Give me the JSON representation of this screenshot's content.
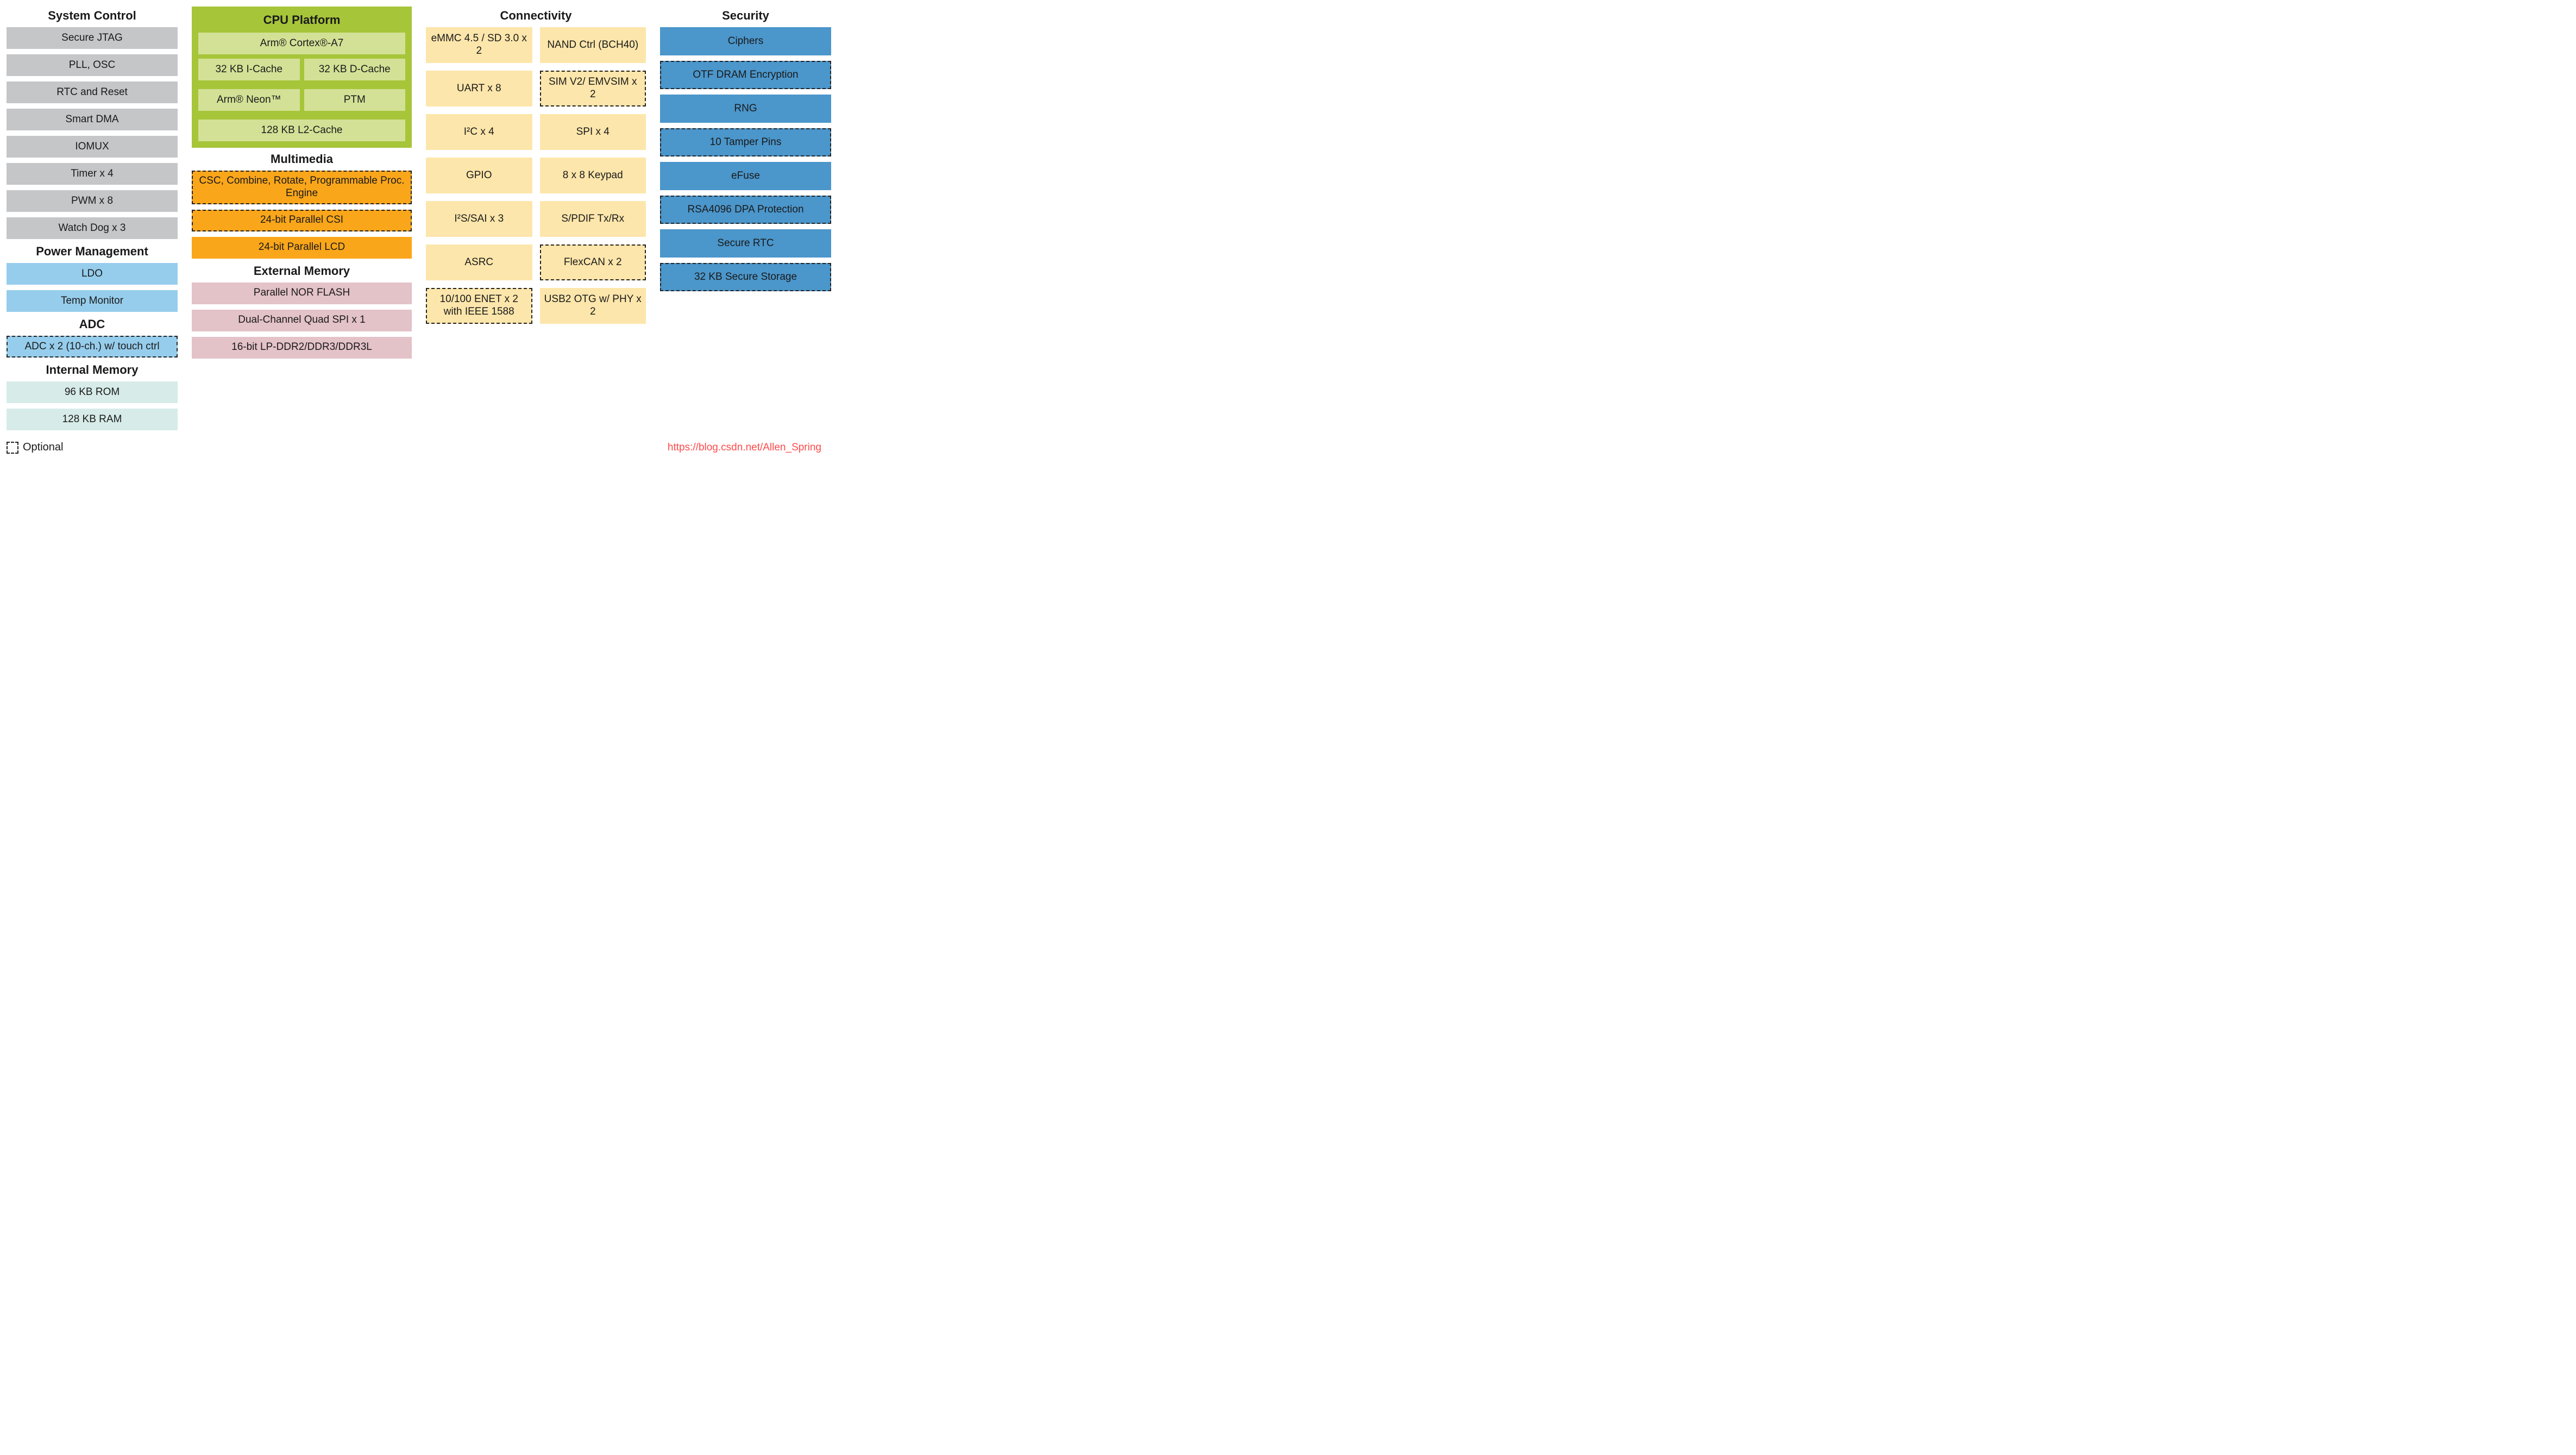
{
  "colors": {
    "gray": "#c4c6c8",
    "lightblue": "#96cdec",
    "mint": "#d7ece8",
    "olive_outer": "#a7c539",
    "olive_inner": "#d3e196",
    "orange": "#faa61a",
    "pink": "#e3c2c8",
    "cream": "#fde6ab",
    "steel": "#4b96cb",
    "text": "#1a1a1a"
  },
  "sections": {
    "system_control": {
      "title": "System Control",
      "items": [
        "Secure JTAG",
        "PLL, OSC",
        "RTC and Reset",
        "Smart DMA",
        "IOMUX",
        "Timer x 4",
        "PWM x 8",
        "Watch Dog x 3"
      ]
    },
    "power": {
      "title": "Power Management",
      "items": [
        "LDO",
        "Temp Monitor"
      ]
    },
    "adc": {
      "title": "ADC",
      "item": "ADC x 2 (10-ch.) w/ touch ctrl"
    },
    "intmem": {
      "title": "Internal Memory",
      "items": [
        "96 KB ROM",
        "128 KB RAM"
      ]
    },
    "cpu": {
      "title": "CPU Platform",
      "core": "Arm® Cortex®-A7",
      "icache": "32 KB I-Cache",
      "dcache": "32 KB D-Cache",
      "neon": "Arm® Neon™",
      "ptm": "PTM",
      "l2": "128 KB L2-Cache"
    },
    "multimedia": {
      "title": "Multimedia",
      "items": [
        {
          "label": "CSC, Combine, Rotate, Programmable Proc. Engine",
          "opt": true
        },
        {
          "label": "24-bit Parallel CSI",
          "opt": true
        },
        {
          "label": "24-bit Parallel LCD",
          "opt": false
        }
      ]
    },
    "extmem": {
      "title": "External Memory",
      "items": [
        "Parallel NOR FLASH",
        "Dual-Channel Quad SPI  x 1",
        "16-bit LP-DDR2/DDR3/DDR3L"
      ]
    },
    "connectivity": {
      "title": "Connectivity",
      "grid": [
        {
          "label": "eMMC 4.5 / SD 3.0 x 2",
          "opt": false
        },
        {
          "label": "NAND Ctrl (BCH40)",
          "opt": false
        },
        {
          "label": "UART x 8",
          "opt": false
        },
        {
          "label": "SIM V2/ EMVSIM x 2",
          "opt": true
        },
        {
          "label": "I²C x 4",
          "opt": false
        },
        {
          "label": "SPI  x 4",
          "opt": false
        },
        {
          "label": "GPIO",
          "opt": false
        },
        {
          "label": "8 x 8 Keypad",
          "opt": false
        },
        {
          "label": "I²S/SAI x 3",
          "opt": false
        },
        {
          "label": "S/PDIF Tx/Rx",
          "opt": false
        },
        {
          "label": "ASRC",
          "opt": false
        },
        {
          "label": "FlexCAN x 2",
          "opt": true
        },
        {
          "label": "10/100 ENET x 2 with IEEE 1588",
          "opt": true
        },
        {
          "label": "USB2 OTG w/ PHY x 2",
          "opt": false
        }
      ]
    },
    "security": {
      "title": "Security",
      "items": [
        {
          "label": "Ciphers",
          "opt": false
        },
        {
          "label": "OTF DRAM Encryption",
          "opt": true
        },
        {
          "label": "RNG",
          "opt": false
        },
        {
          "label": "10 Tamper Pins",
          "opt": true
        },
        {
          "label": "eFuse",
          "opt": false
        },
        {
          "label": "RSA4096 DPA Protection",
          "opt": true
        },
        {
          "label": "Secure RTC",
          "opt": false
        },
        {
          "label": "32 KB Secure Storage",
          "opt": true
        }
      ]
    }
  },
  "footer": {
    "legend": "Optional",
    "attrib": "https://blog.csdn.net/Allen_Spring"
  }
}
